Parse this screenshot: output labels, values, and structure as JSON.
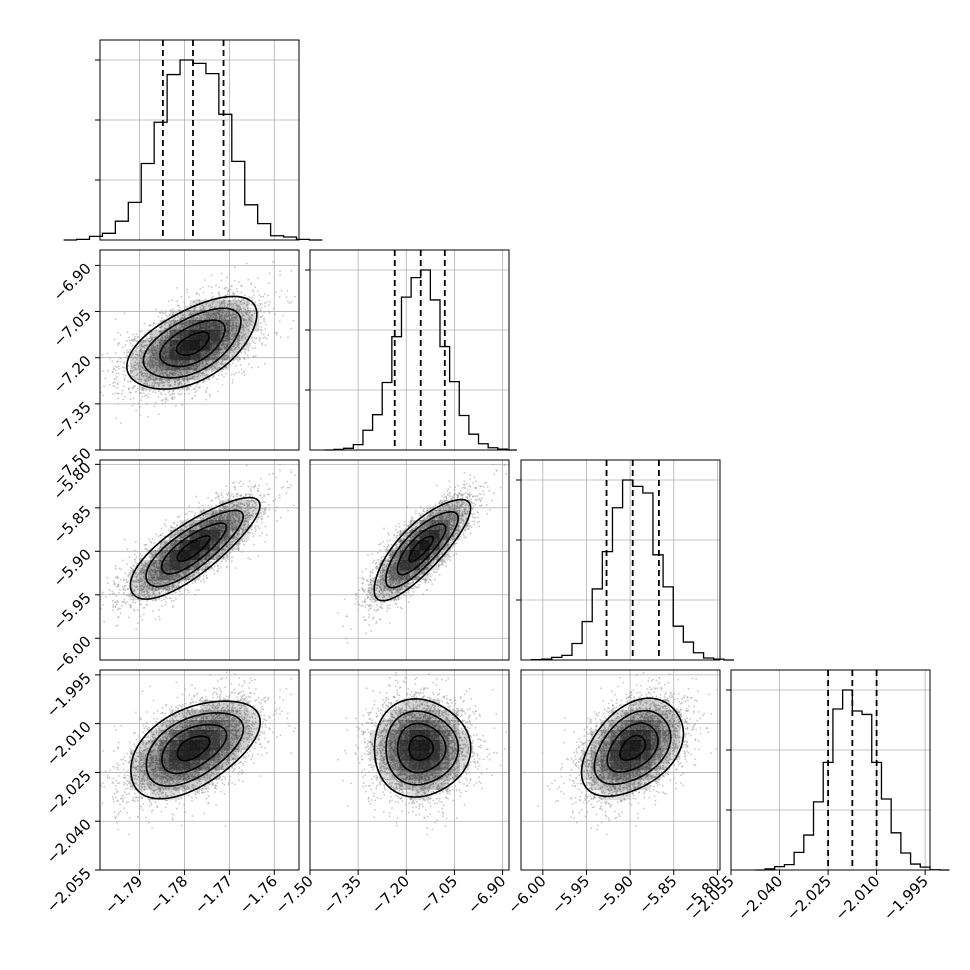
{
  "chart_data": {
    "type": "corner",
    "title": "",
    "grid": true,
    "style": {
      "hist_color": "#000000",
      "contour_color": "#000000",
      "fill_color": "#000000",
      "point_color": "#9a9a9a",
      "grid_color": "#b0b0b0",
      "background": "#ffffff"
    },
    "parameters": [
      {
        "xlim": [
          -1.7988,
          -1.7545
        ],
        "ylim": [
          -7.5,
          -6.85
        ],
        "ticks": [
          -1.79,
          -1.78,
          -1.77,
          -1.76
        ],
        "tick_labels": [
          "−1.79",
          "−1.78",
          "−1.77",
          "−1.76"
        ],
        "mean": -1.7781,
        "sigma": 0.0072,
        "quantiles": [
          -1.7848,
          -1.7781,
          -1.7713
        ]
      },
      {
        "xlim": [
          -7.5,
          -6.88
        ],
        "ylim": [
          -7.5,
          -6.85
        ],
        "ticks": [
          -7.5,
          -7.35,
          -7.2,
          -7.05,
          -6.9
        ],
        "tick_labels": [
          "−7.50",
          "−7.35",
          "−7.20",
          "−7.05",
          "−6.90"
        ],
        "mean": -7.155,
        "sigma": 0.075,
        "quantiles": [
          -7.236,
          -7.155,
          -7.08
        ]
      },
      {
        "xlim": [
          -6.025,
          -5.797
        ],
        "ylim": [
          -6.025,
          -5.795
        ],
        "ticks": [
          -6.0,
          -5.95,
          -5.9,
          -5.85,
          -5.8
        ],
        "tick_labels": [
          "−6.00",
          "−5.95",
          "−5.90",
          "−5.85",
          "−5.80"
        ],
        "mean": -5.897,
        "sigma": 0.029,
        "quantiles": [
          -5.927,
          -5.897,
          -5.867
        ]
      },
      {
        "xlim": [
          -2.055,
          -1.9935
        ],
        "ylim": [
          -2.055,
          -1.9935
        ],
        "ticks": [
          -2.055,
          -2.04,
          -2.025,
          -2.01,
          -1.995
        ],
        "tick_labels": [
          "−2.055",
          "−2.040",
          "−2.025",
          "−2.010",
          "−1.995"
        ],
        "mean": -2.0175,
        "sigma": 0.0075,
        "quantiles": [
          -2.025,
          -2.0175,
          -2.01
        ]
      }
    ],
    "correlations": [
      [
        1.0,
        0.55,
        0.8,
        0.5
      ],
      [
        0.55,
        1.0,
        0.8,
        0.0
      ],
      [
        0.8,
        0.8,
        1.0,
        0.4
      ],
      [
        0.5,
        0.0,
        0.4,
        1.0
      ]
    ],
    "hist_bins": 20,
    "n_samples": 4000,
    "contour_levels": [
      0.5,
      1.0,
      1.5,
      2.0
    ]
  }
}
